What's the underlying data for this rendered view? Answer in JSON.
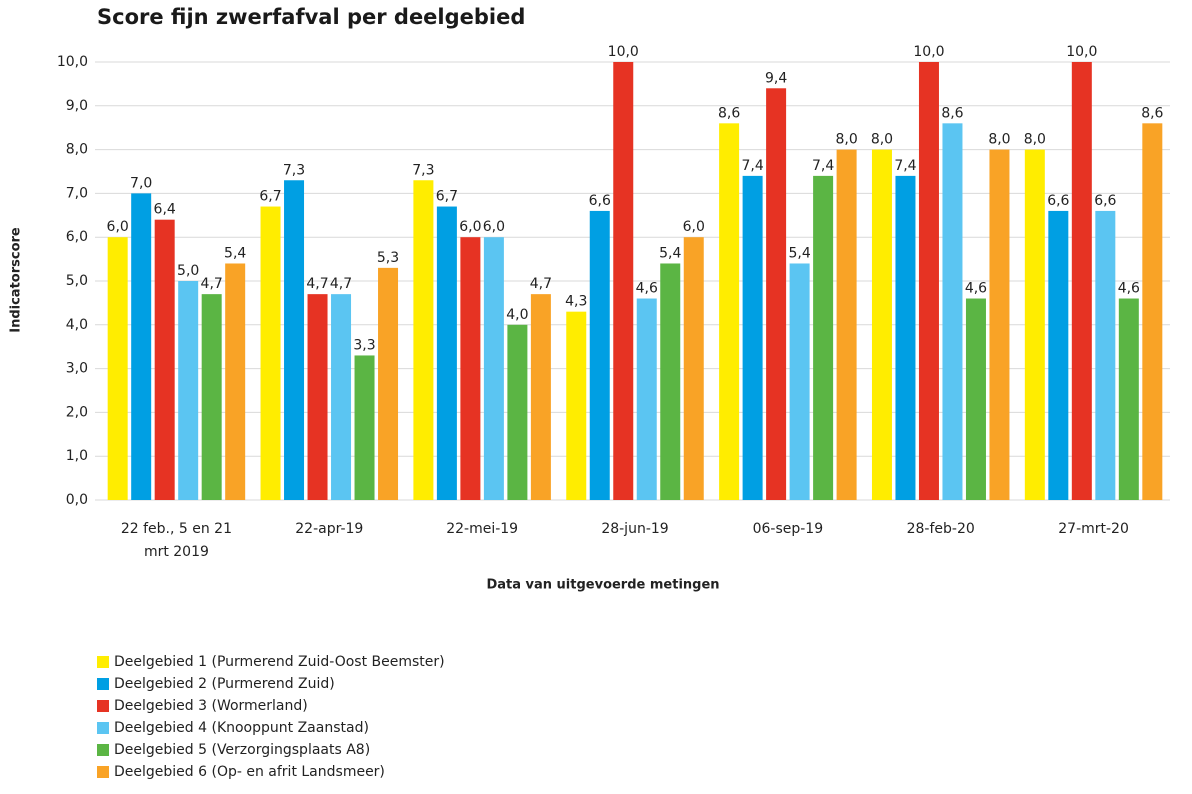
{
  "chart_data": {
    "type": "bar",
    "title": "Score fijn zwerfafval per deelgebied",
    "y_label": "Indicatorscore",
    "x_label": "Data van uitgevoerde metingen",
    "categories": [
      "22 feb., 5 en 21 mrt 2019",
      "22-apr-19",
      "22-mei-19",
      "28-jun-19",
      "06-sep-19",
      "28-feb-20",
      "27-mrt-20"
    ],
    "ylim": [
      0,
      10
    ],
    "yticks": [
      {
        "value": 0,
        "label": "0,0"
      },
      {
        "value": 1,
        "label": "1,0"
      },
      {
        "value": 2,
        "label": "2,0"
      },
      {
        "value": 3,
        "label": "3,0"
      },
      {
        "value": 4,
        "label": "4,0"
      },
      {
        "value": 5,
        "label": "5,0"
      },
      {
        "value": 6,
        "label": "6,0"
      },
      {
        "value": 7,
        "label": "7,0"
      },
      {
        "value": 8,
        "label": "8,0"
      },
      {
        "value": 9,
        "label": "9,0"
      },
      {
        "value": 10,
        "label": "10,0"
      }
    ],
    "grid": true,
    "legend": "bottom-left",
    "series": [
      {
        "name": "Deelgebied 1 (Purmerend Zuid-Oost Beemster)",
        "color": "#ffed00",
        "values": [
          6.0,
          6.7,
          7.3,
          4.3,
          8.6,
          8.0,
          8.0
        ],
        "value_labels": [
          "6,0",
          "6,7",
          "7,3",
          "4,3",
          "8,6",
          "8,0",
          "8,0"
        ]
      },
      {
        "name": "Deelgebied 2 (Purmerend Zuid)",
        "color": "#009fe3",
        "values": [
          7.0,
          7.3,
          6.7,
          6.6,
          7.4,
          7.4,
          6.6
        ],
        "value_labels": [
          "7,0",
          "7,3",
          "6,7",
          "6,6",
          "7,4",
          "7,4",
          "6,6"
        ]
      },
      {
        "name": "Deelgebied 3 (Wormerland)",
        "color": "#e63323",
        "values": [
          6.4,
          4.7,
          6.0,
          10.0,
          9.4,
          10.0,
          10.0
        ],
        "value_labels": [
          "6,4",
          "4,7",
          "6,0",
          "10,0",
          "9,4",
          "10,0",
          "10,0"
        ]
      },
      {
        "name": "Deelgebied 4 (Knooppunt Zaanstad)",
        "color": "#5bc5f2",
        "values": [
          5.0,
          4.7,
          6.0,
          4.6,
          5.4,
          8.6,
          6.6
        ],
        "value_labels": [
          "5,0",
          "4,7",
          "6,0",
          "4,6",
          "5,4",
          "8,6",
          "6,6"
        ]
      },
      {
        "name": "Deelgebied 5 (Verzorgingsplaats A8)",
        "color": "#5bb544",
        "values": [
          4.7,
          3.3,
          4.0,
          5.4,
          7.4,
          4.6,
          4.6
        ],
        "value_labels": [
          "4,7",
          "3,3",
          "4,0",
          "5,4",
          "7,4",
          "4,6",
          "4,6"
        ]
      },
      {
        "name": "Deelgebied 6 (Op- en afrit Landsmeer)",
        "color": "#f9a326",
        "values": [
          5.4,
          5.3,
          4.7,
          6.0,
          8.0,
          8.0,
          8.6
        ],
        "value_labels": [
          "5,4",
          "5,3",
          "4,7",
          "6,0",
          "8,0",
          "8,0",
          "8,6"
        ]
      }
    ]
  }
}
